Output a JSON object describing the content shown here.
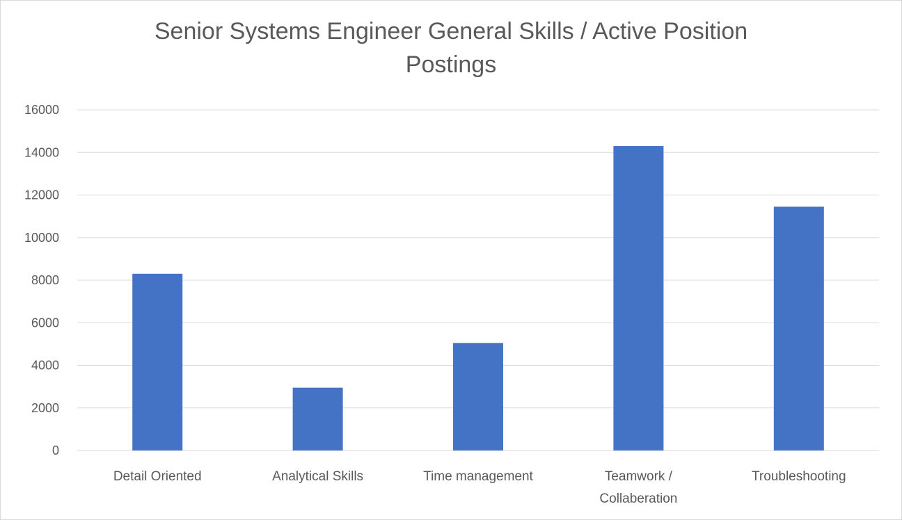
{
  "chart_data": {
    "type": "bar",
    "title": "Senior Systems Engineer General Skills / Active Position Postings",
    "xlabel": "",
    "ylabel": "",
    "categories": [
      [
        "Detail Oriented"
      ],
      [
        "Analytical Skills"
      ],
      [
        "Time management"
      ],
      [
        "Teamwork /",
        "Collaberation"
      ],
      [
        "Troubleshooting"
      ]
    ],
    "values": [
      8300,
      2950,
      5050,
      14300,
      11450
    ],
    "ylim": [
      0,
      16000
    ],
    "yticks": [
      0,
      2000,
      4000,
      6000,
      8000,
      10000,
      12000,
      14000,
      16000
    ],
    "grid": true,
    "legend": "none",
    "bar_color": "#4472c4"
  }
}
